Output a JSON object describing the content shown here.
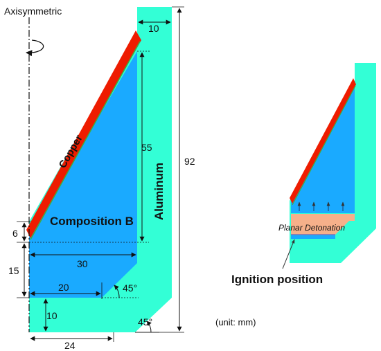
{
  "labels": {
    "axis": "Axisymmetric",
    "copper": "Copper",
    "composition": "Composition B",
    "aluminum": "Aluminum",
    "planar": "Planar Detonation",
    "ignition": "Ignition position",
    "unit": "(unit: mm)"
  },
  "dimensions": {
    "top_width": "10",
    "liner_height": "55",
    "total_height": "92",
    "offset": "6",
    "base_height": "15",
    "inner_width": "30",
    "lower_width": "20",
    "inner_angle": "45°",
    "bottom_height": "10",
    "bottom_width": "24",
    "outer_angle": "45°"
  },
  "colors": {
    "aluminum": "#33ffd6",
    "explosive": "#1aaaff",
    "copper": "#ee1c00",
    "copper_edge": "#3fae3f",
    "planar_band": "#f6b08a",
    "outline": "#111111"
  },
  "icons": {
    "rotation": "rotation-arrow-icon"
  }
}
